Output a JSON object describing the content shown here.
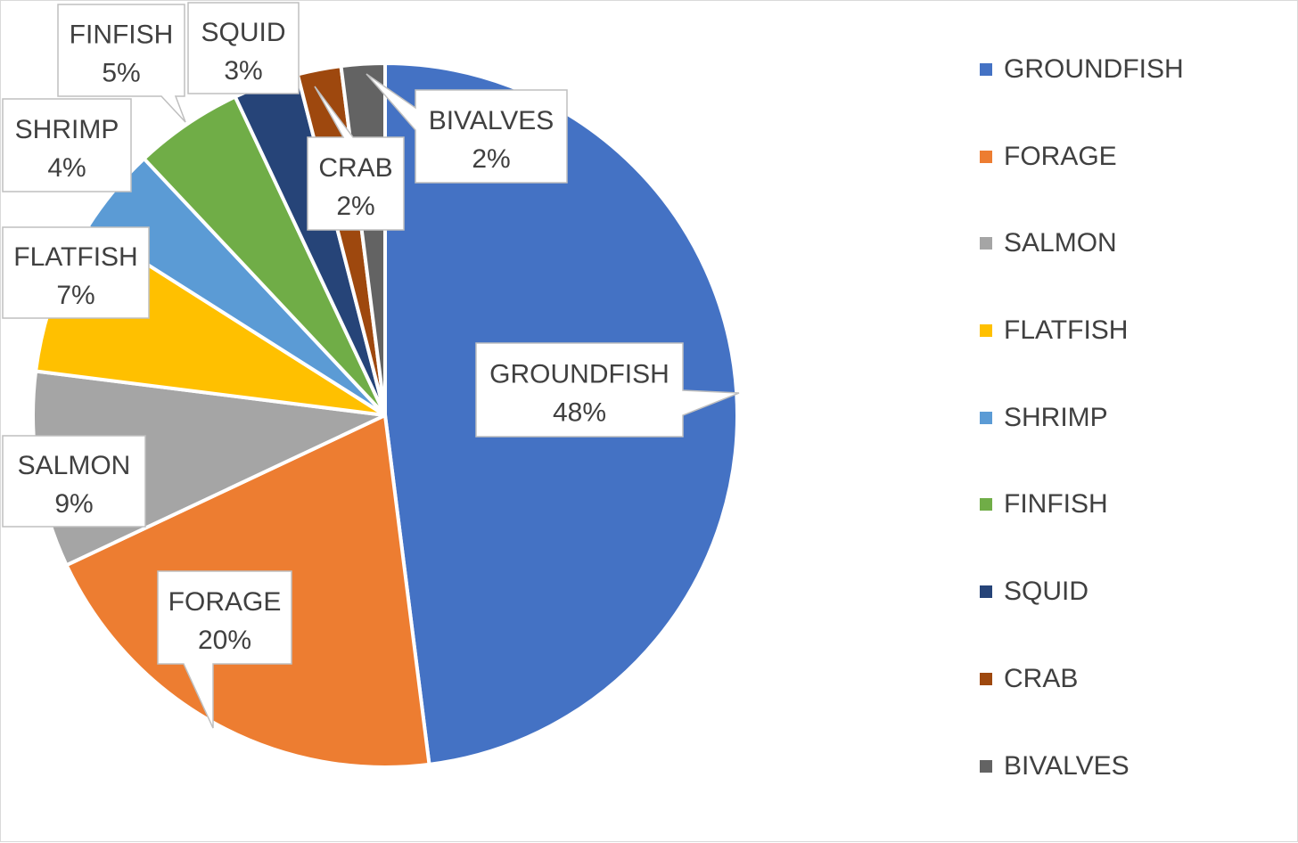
{
  "chart_data": {
    "type": "pie",
    "title": "",
    "start_angle_deg": 0,
    "direction": "clockwise",
    "legend_position": "right",
    "slices": [
      {
        "label": "GROUNDFISH",
        "value": 48,
        "pct_text": "48%",
        "color": "#4472C4"
      },
      {
        "label": "FORAGE",
        "value": 20,
        "pct_text": "20%",
        "color": "#ED7D31"
      },
      {
        "label": "SALMON",
        "value": 9,
        "pct_text": "9%",
        "color": "#A5A5A5"
      },
      {
        "label": "FLATFISH",
        "value": 7,
        "pct_text": "7%",
        "color": "#FFC000"
      },
      {
        "label": "SHRIMP",
        "value": 4,
        "pct_text": "4%",
        "color": "#5B9BD5"
      },
      {
        "label": "FINFISH",
        "value": 5,
        "pct_text": "5%",
        "color": "#70AD47"
      },
      {
        "label": "SQUID",
        "value": 3,
        "pct_text": "3%",
        "color": "#264478"
      },
      {
        "label": "CRAB",
        "value": 2,
        "pct_text": "2%",
        "color": "#9E480E"
      },
      {
        "label": "BIVALVES",
        "value": 2,
        "pct_text": "2%",
        "color": "#636363"
      }
    ]
  }
}
